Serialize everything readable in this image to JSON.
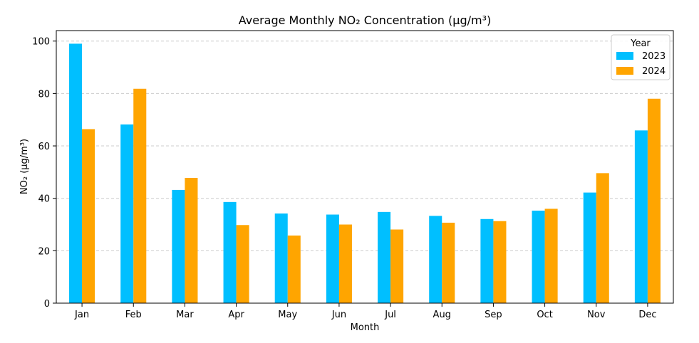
{
  "chart_data": {
    "type": "bar",
    "title": "Average Monthly NO₂ Concentration (µg/m³)",
    "xlabel": "Month",
    "ylabel": "NO₂ (µg/m³)",
    "ylim": [
      0,
      104
    ],
    "yticks": [
      "0",
      "20",
      "40",
      "60",
      "80",
      "100"
    ],
    "grid": "y-dashed",
    "categories": [
      "Jan",
      "Feb",
      "Mar",
      "Apr",
      "May",
      "Jun",
      "Jul",
      "Aug",
      "Sep",
      "Oct",
      "Nov",
      "Dec"
    ],
    "legend": {
      "title": "Year",
      "placement": "top-right"
    },
    "series": [
      {
        "name": "2023",
        "color": "#00bfff",
        "values": [
          99.0,
          68.2,
          43.2,
          38.6,
          34.2,
          33.8,
          34.8,
          33.3,
          32.1,
          35.3,
          42.2,
          65.9
        ]
      },
      {
        "name": "2024",
        "color": "#ffa500",
        "values": [
          66.4,
          81.8,
          47.8,
          29.8,
          25.8,
          30.0,
          28.1,
          30.7,
          31.3,
          36.0,
          49.6,
          78.0
        ]
      }
    ]
  }
}
